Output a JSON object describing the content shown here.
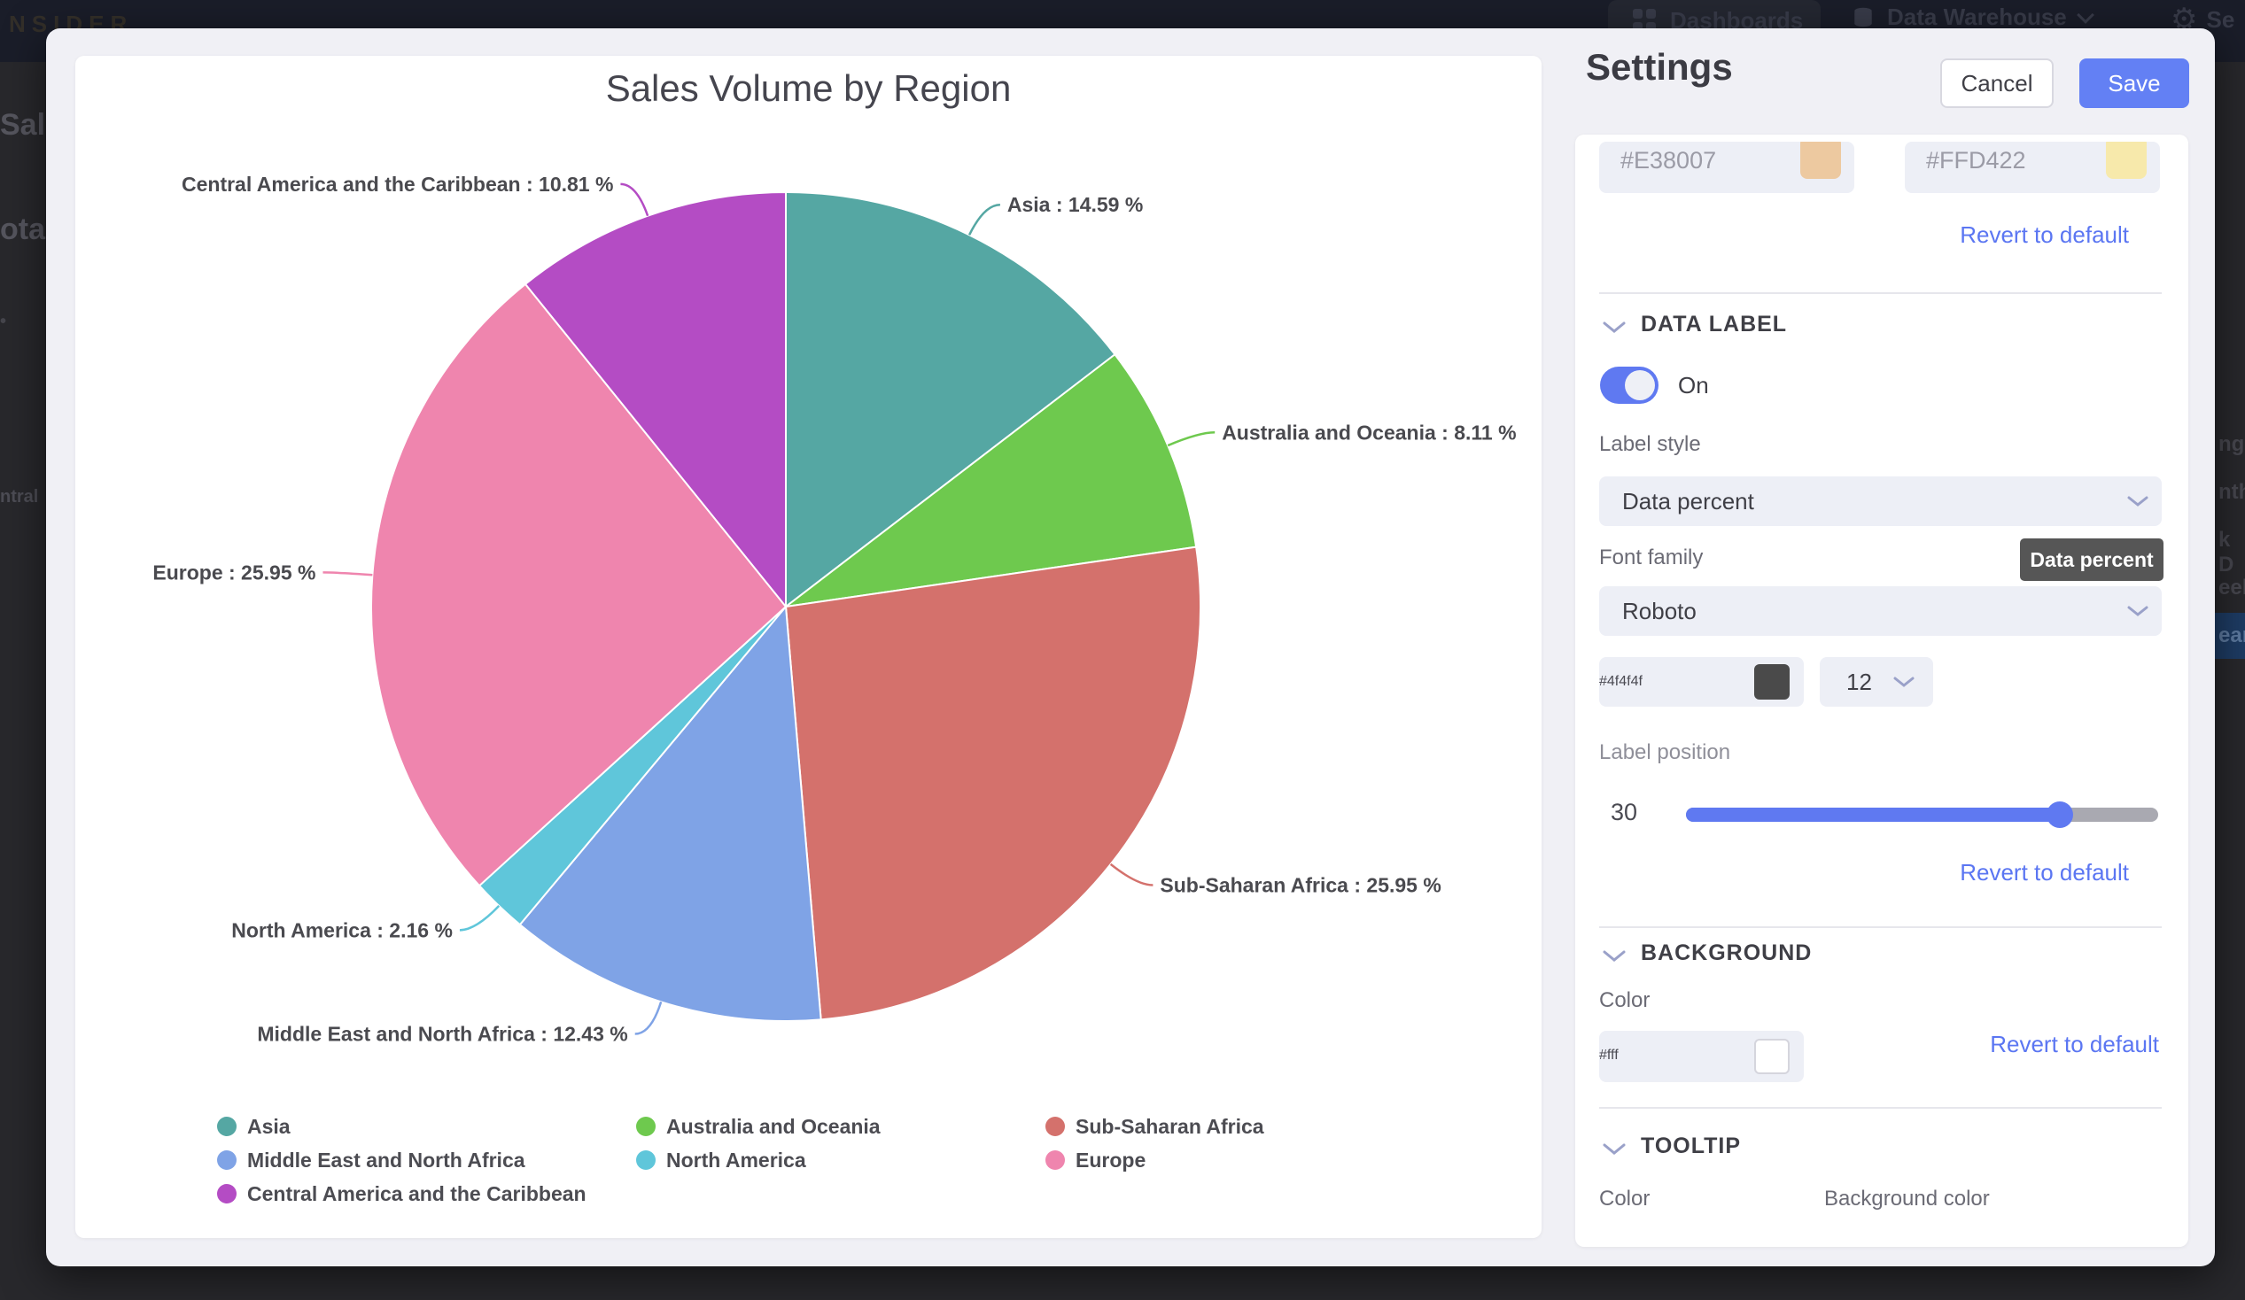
{
  "topbar": {
    "logo": "NSIDER",
    "dashboards_label": "Dashboards",
    "data_warehouse_label": "Data Warehouse",
    "settings_fragment": "Se"
  },
  "backdrop_fragments": {
    "left1": "Sal",
    "left2": "ota",
    "left3": "•",
    "left4": "ntral",
    "right1": "nge",
    "right2": "nth",
    "right3": "k D",
    "right4": "eek",
    "right5": "ear"
  },
  "chart_data": {
    "type": "pie",
    "title": "Sales Volume by Region",
    "unit": "%",
    "label_format": "{name} : {value} %",
    "legend_position": "bottom",
    "series": [
      {
        "name": "Asia",
        "value": 14.59,
        "color": "#55a7a3"
      },
      {
        "name": "Australia and Oceania",
        "value": 8.11,
        "color": "#6ec94e"
      },
      {
        "name": "Sub-Saharan Africa",
        "value": 25.95,
        "color": "#d4716c"
      },
      {
        "name": "Middle East and North Africa",
        "value": 12.43,
        "color": "#7fa3e6"
      },
      {
        "name": "North America",
        "value": 2.16,
        "color": "#5fc6da"
      },
      {
        "name": "Europe",
        "value": 25.95,
        "color": "#ef85ae"
      },
      {
        "name": "Central America and the Caribbean",
        "value": 10.81,
        "color": "#b44cc4"
      }
    ],
    "legend_layout": [
      {
        "series_index": 0,
        "col": 0,
        "row": 0
      },
      {
        "series_index": 3,
        "col": 0,
        "row": 1
      },
      {
        "series_index": 6,
        "col": 0,
        "row": 2
      },
      {
        "series_index": 1,
        "col": 1,
        "row": 0
      },
      {
        "series_index": 4,
        "col": 1,
        "row": 1
      },
      {
        "series_index": 2,
        "col": 2,
        "row": 0
      },
      {
        "series_index": 5,
        "col": 2,
        "row": 1
      }
    ]
  },
  "settings": {
    "title": "Settings",
    "cancel_label": "Cancel",
    "save_label": "Save",
    "revert_label": "Revert to default",
    "color_pair": {
      "value1": "#E38007",
      "value2": "#FFD422"
    },
    "data_label": {
      "header": "DATA LABEL",
      "toggle_state": "On",
      "label_style_label": "Label style",
      "label_style_value": "Data percent",
      "style_tooltip": "Data percent",
      "font_family_label": "Font family",
      "font_family_value": "Roboto",
      "font_color_value": "#4f4f4f",
      "font_size_value": "12",
      "label_position_label": "Label position",
      "label_position_value": "30"
    },
    "background": {
      "header": "BACKGROUND",
      "color_label": "Color",
      "color_value": "#fff"
    },
    "tooltip": {
      "header": "TOOLTIP",
      "color_label": "Color",
      "bg_color_label": "Background color"
    }
  }
}
